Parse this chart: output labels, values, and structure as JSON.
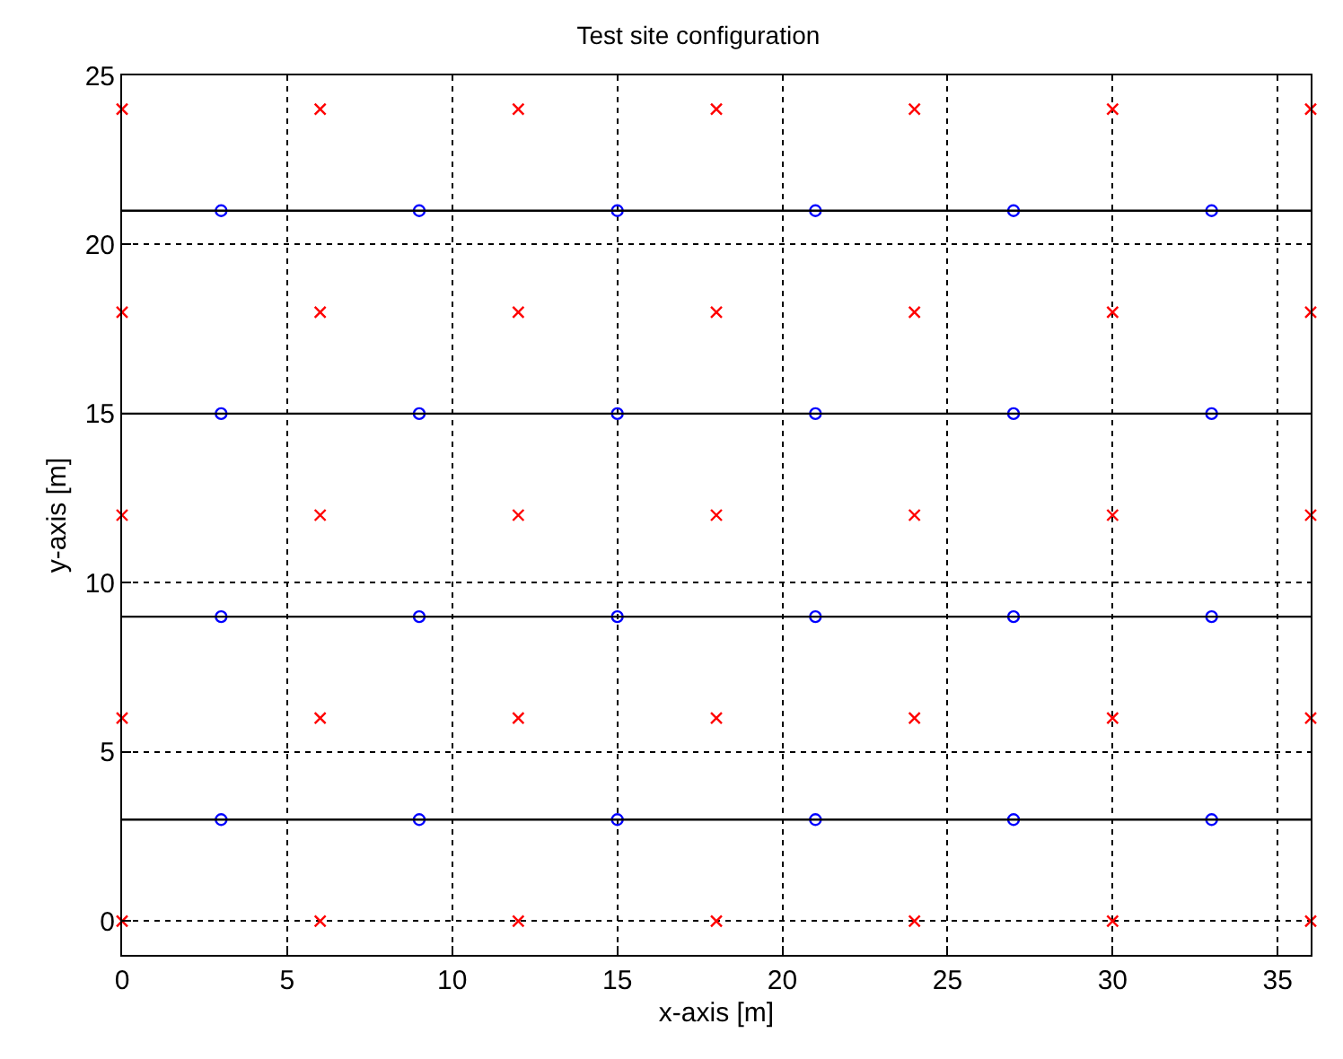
{
  "chart_data": {
    "type": "scatter",
    "title": "Test site configuration",
    "xlabel": "x-axis [m]",
    "ylabel": "y-axis [m]",
    "series": [
      {
        "color": "#ff0000",
        "marker": "cross",
        "x": [
          0,
          6,
          12,
          18,
          24,
          30,
          36,
          0,
          6,
          12,
          18,
          24,
          30,
          36,
          0,
          6,
          12,
          18,
          24,
          30,
          36,
          0,
          6,
          12,
          18,
          24,
          30,
          36,
          0,
          6,
          12,
          18,
          24,
          30,
          36
        ],
        "values": [
          0,
          0,
          0,
          0,
          0,
          0,
          0,
          6,
          6,
          6,
          6,
          6,
          6,
          6,
          12,
          12,
          12,
          12,
          12,
          12,
          12,
          18,
          18,
          18,
          18,
          18,
          18,
          18,
          24,
          24,
          24,
          24,
          24,
          24,
          24
        ]
      },
      {
        "color": "#0000ff",
        "marker": "circle",
        "x": [
          3,
          9,
          15,
          21,
          27,
          33,
          3,
          9,
          15,
          21,
          27,
          33,
          3,
          9,
          15,
          21,
          27,
          33,
          3,
          9,
          15,
          21,
          27,
          33
        ],
        "values": [
          3,
          3,
          3,
          3,
          3,
          3,
          9,
          9,
          9,
          9,
          9,
          9,
          15,
          15,
          15,
          15,
          15,
          15,
          21,
          21,
          21,
          21,
          21,
          21
        ]
      }
    ],
    "ref_lines": [
      {
        "axis": "y",
        "value": 3,
        "color": "#000000",
        "line_style": "solid"
      },
      {
        "axis": "y",
        "value": 9,
        "color": "#000000",
        "line_style": "solid"
      },
      {
        "axis": "y",
        "value": 15,
        "color": "#000000",
        "line_style": "solid"
      },
      {
        "axis": "y",
        "value": 21,
        "color": "#000000",
        "line_style": "solid"
      }
    ],
    "xlim": [
      0,
      36
    ],
    "ylim": [
      -1,
      25
    ],
    "xticks": [
      0,
      5,
      10,
      15,
      20,
      25,
      30,
      35
    ],
    "yticks": [
      0,
      5,
      10,
      15,
      20,
      25
    ],
    "grid": true
  }
}
